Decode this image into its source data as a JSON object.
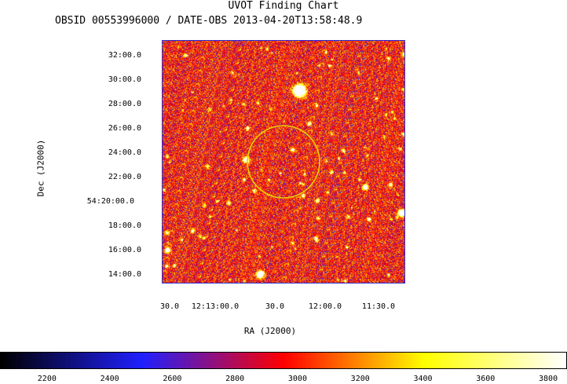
{
  "title": "UVOT Finding Chart",
  "subtitle": "OBSID 00553996000 / DATE-OBS 2013-04-20T13:58:48.9",
  "chart_data": {
    "type": "heatmap",
    "title": "UVOT Finding Chart",
    "subtitle": "OBSID 00553996000 / DATE-OBS 2013-04-20T13:58:48.9",
    "xlabel": "RA (J2000)",
    "ylabel": "Dec (J2000)",
    "x_ticks": [
      "30.0",
      "12:13:00.0",
      "30.0",
      "12:00.0",
      "11:30.0"
    ],
    "y_ticks": [
      "32:00.0",
      "30:00.0",
      "28:00.0",
      "26:00.0",
      "24:00.0",
      "22:00.0",
      "54:20:00.0",
      "18:00.0",
      "16:00.0",
      "14:00.0"
    ],
    "colorbar": {
      "range": [
        2050,
        3860
      ],
      "ticks": [
        2200,
        2400,
        2600,
        2800,
        3000,
        3200,
        3400,
        3600,
        3800
      ],
      "colormap": [
        "#000000",
        "#2020ff",
        "#ff0000",
        "#ffff00",
        "#ffffff"
      ]
    },
    "overlay": {
      "shape": "circle",
      "color": "#e8d000"
    },
    "grid": false
  }
}
